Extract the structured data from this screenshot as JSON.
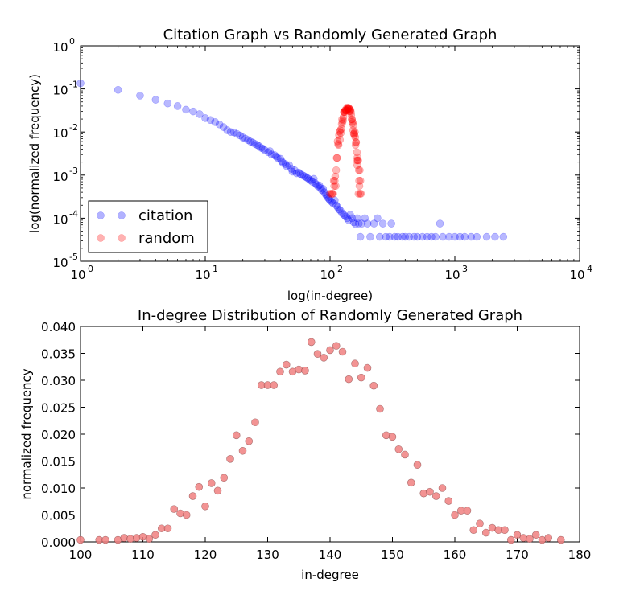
{
  "chart_data": [
    {
      "type": "scatter",
      "title": "Citation Graph vs Randomly Generated Graph",
      "xlabel": "log(in-degree)",
      "ylabel": "log(normalized frequency)",
      "xscale": "log",
      "yscale": "log",
      "xlim": [
        1,
        10000
      ],
      "ylim": [
        1e-05,
        1
      ],
      "x_ticks": [
        {
          "base": "10",
          "exp": "0"
        },
        {
          "base": "10",
          "exp": "1"
        },
        {
          "base": "10",
          "exp": "2"
        },
        {
          "base": "10",
          "exp": "3"
        },
        {
          "base": "10",
          "exp": "4"
        }
      ],
      "y_ticks": [
        {
          "base": "10",
          "exp": "-5"
        },
        {
          "base": "10",
          "exp": "-4"
        },
        {
          "base": "10",
          "exp": "-3"
        },
        {
          "base": "10",
          "exp": "-2"
        },
        {
          "base": "10",
          "exp": "-1"
        },
        {
          "base": "10",
          "exp": "0"
        }
      ],
      "legend": {
        "placement": "lower-left",
        "entries": [
          "citation",
          "random"
        ]
      },
      "series": [
        {
          "name": "citation",
          "color": "#0000ff",
          "points": [
            [
              1,
              0.135
            ],
            [
              2,
              0.095
            ],
            [
              3,
              0.07
            ],
            [
              4,
              0.056
            ],
            [
              5,
              0.046
            ],
            [
              6,
              0.04
            ],
            [
              7,
              0.033
            ],
            [
              8,
              0.03
            ],
            [
              9,
              0.026
            ],
            [
              10,
              0.021
            ],
            [
              11,
              0.019
            ],
            [
              12,
              0.017
            ],
            [
              13,
              0.015
            ],
            [
              14,
              0.013
            ],
            [
              15,
              0.011
            ],
            [
              16,
              0.01
            ],
            [
              17,
              0.0098
            ],
            [
              18,
              0.009
            ],
            [
              19,
              0.0083
            ],
            [
              20,
              0.0075
            ],
            [
              21,
              0.007
            ],
            [
              22,
              0.0065
            ],
            [
              23,
              0.006
            ],
            [
              24,
              0.0057
            ],
            [
              25,
              0.0053
            ],
            [
              26,
              0.005
            ],
            [
              27,
              0.0047
            ],
            [
              28,
              0.0043
            ],
            [
              29,
              0.0041
            ],
            [
              30,
              0.0038
            ],
            [
              32,
              0.0034
            ],
            [
              33,
              0.0036
            ],
            [
              34,
              0.003
            ],
            [
              36,
              0.0029
            ],
            [
              37,
              0.0027
            ],
            [
              38,
              0.0025
            ],
            [
              40,
              0.0024
            ],
            [
              41,
              0.0021
            ],
            [
              42,
              0.0019
            ],
            [
              44,
              0.0018
            ],
            [
              45,
              0.0016
            ],
            [
              47,
              0.0017
            ],
            [
              49,
              0.0014
            ],
            [
              50,
              0.0012
            ],
            [
              52,
              0.0013
            ],
            [
              54,
              0.0011
            ],
            [
              56,
              0.00115
            ],
            [
              58,
              0.00105
            ],
            [
              60,
              0.001
            ],
            [
              62,
              0.00095
            ],
            [
              64,
              0.0009
            ],
            [
              66,
              0.00085
            ],
            [
              68,
              0.0008
            ],
            [
              70,
              0.00075
            ],
            [
              72,
              0.0007
            ],
            [
              74,
              0.00082
            ],
            [
              76,
              0.00065
            ],
            [
              78,
              0.0006
            ],
            [
              80,
              0.00055
            ],
            [
              82,
              0.00058
            ],
            [
              84,
              0.0005
            ],
            [
              86,
              0.00045
            ],
            [
              88,
              0.00048
            ],
            [
              90,
              0.0004
            ],
            [
              92,
              0.00036
            ],
            [
              94,
              0.00033
            ],
            [
              96,
              0.0003
            ],
            [
              98,
              0.00028
            ],
            [
              100,
              0.00026
            ],
            [
              103,
              0.00024
            ],
            [
              106,
              0.00022
            ],
            [
              109,
              0.00026
            ],
            [
              112,
              0.0002
            ],
            [
              115,
              0.00018
            ],
            [
              118,
              0.00016
            ],
            [
              121,
              0.00015
            ],
            [
              125,
              0.00013
            ],
            [
              129,
              0.00012
            ],
            [
              133,
              0.00011
            ],
            [
              137,
              0.0001
            ],
            [
              141,
              9e-05
            ],
            [
              145,
              0.00012
            ],
            [
              150,
              0.0001
            ],
            [
              155,
              8e-05
            ],
            [
              160,
              7.3e-05
            ],
            [
              165,
              0.0001
            ],
            [
              170,
              7.5e-05
            ],
            [
              175,
              3.7e-05
            ],
            [
              180,
              7.5e-05
            ],
            [
              190,
              0.0001
            ],
            [
              200,
              7.5e-05
            ],
            [
              210,
              3.7e-05
            ],
            [
              225,
              7.5e-05
            ],
            [
              240,
              0.0001
            ],
            [
              250,
              3.7e-05
            ],
            [
              265,
              7.5e-05
            ],
            [
              280,
              3.7e-05
            ],
            [
              300,
              3.7e-05
            ],
            [
              310,
              7.5e-05
            ],
            [
              330,
              3.7e-05
            ],
            [
              350,
              3.7e-05
            ],
            [
              380,
              3.7e-05
            ],
            [
              400,
              3.7e-05
            ],
            [
              430,
              3.7e-05
            ],
            [
              470,
              3.7e-05
            ],
            [
              500,
              3.7e-05
            ],
            [
              550,
              3.7e-05
            ],
            [
              600,
              3.7e-05
            ],
            [
              650,
              3.7e-05
            ],
            [
              700,
              3.7e-05
            ],
            [
              760,
              7.5e-05
            ],
            [
              800,
              3.7e-05
            ],
            [
              900,
              3.7e-05
            ],
            [
              1000,
              3.7e-05
            ],
            [
              1100,
              3.7e-05
            ],
            [
              1200,
              3.7e-05
            ],
            [
              1350,
              3.7e-05
            ],
            [
              1500,
              3.7e-05
            ],
            [
              1800,
              3.7e-05
            ],
            [
              2100,
              3.7e-05
            ],
            [
              2450,
              3.7e-05
            ]
          ]
        },
        {
          "name": "random",
          "color": "#ff0000",
          "points": [
            [
              100,
              0.00037
            ],
            [
              103,
              0.00037
            ],
            [
              104,
              0.00037
            ],
            [
              106,
              0.00037
            ],
            [
              107,
              0.00074
            ],
            [
              108,
              0.00056
            ],
            [
              109,
              0.00074
            ],
            [
              110,
              0.00093
            ],
            [
              111,
              0.00056
            ],
            [
              112,
              0.0013
            ],
            [
              113,
              0.0025
            ],
            [
              114,
              0.0025
            ],
            [
              115,
              0.0061
            ],
            [
              116,
              0.0053
            ],
            [
              117,
              0.005
            ],
            [
              118,
              0.0085
            ],
            [
              119,
              0.0102
            ],
            [
              120,
              0.0066
            ],
            [
              121,
              0.0109
            ],
            [
              122,
              0.0095
            ],
            [
              123,
              0.0119
            ],
            [
              124,
              0.0154
            ],
            [
              125,
              0.0198
            ],
            [
              126,
              0.0169
            ],
            [
              127,
              0.0187
            ],
            [
              128,
              0.0222
            ],
            [
              129,
              0.0291
            ],
            [
              130,
              0.0291
            ],
            [
              131,
              0.0291
            ],
            [
              132,
              0.0316
            ],
            [
              133,
              0.0329
            ],
            [
              134,
              0.0316
            ],
            [
              135,
              0.032
            ],
            [
              136,
              0.0318
            ],
            [
              137,
              0.0371
            ],
            [
              138,
              0.0349
            ],
            [
              139,
              0.0342
            ],
            [
              140,
              0.0356
            ],
            [
              141,
              0.0364
            ],
            [
              142,
              0.0353
            ],
            [
              143,
              0.0302
            ],
            [
              144,
              0.0331
            ],
            [
              145,
              0.0305
            ],
            [
              146,
              0.0323
            ],
            [
              147,
              0.029
            ],
            [
              148,
              0.0247
            ],
            [
              149,
              0.0198
            ],
            [
              150,
              0.0195
            ],
            [
              151,
              0.0172
            ],
            [
              152,
              0.0162
            ],
            [
              153,
              0.011
            ],
            [
              154,
              0.0143
            ],
            [
              155,
              0.009
            ],
            [
              156,
              0.0093
            ],
            [
              157,
              0.0085
            ],
            [
              158,
              0.01
            ],
            [
              159,
              0.0076
            ],
            [
              160,
              0.005
            ],
            [
              161,
              0.0058
            ],
            [
              162,
              0.0058
            ],
            [
              163,
              0.0022
            ],
            [
              164,
              0.0034
            ],
            [
              165,
              0.0017
            ],
            [
              166,
              0.0026
            ],
            [
              167,
              0.0022
            ],
            [
              168,
              0.0022
            ],
            [
              169,
              0.00037
            ],
            [
              170,
              0.0013
            ],
            [
              171,
              0.00074
            ],
            [
              172,
              0.00056
            ],
            [
              173,
              0.0013
            ],
            [
              174,
              0.00037
            ],
            [
              175,
              0.00074
            ],
            [
              177,
              0.00037
            ]
          ]
        }
      ]
    },
    {
      "type": "scatter",
      "title": "In-degree Distribution of Randomly Generated Graph",
      "xlabel": "in-degree",
      "ylabel": "normalized frequency",
      "xlim": [
        100,
        180
      ],
      "ylim": [
        0,
        0.04
      ],
      "x_ticks": [
        "100",
        "110",
        "120",
        "130",
        "140",
        "150",
        "160",
        "170",
        "180"
      ],
      "y_ticks": [
        "0.000",
        "0.005",
        "0.010",
        "0.015",
        "0.020",
        "0.025",
        "0.030",
        "0.035",
        "0.040"
      ],
      "series": [
        {
          "name": "",
          "color": "#f08080",
          "points": "same as random series of first chart"
        }
      ]
    }
  ]
}
